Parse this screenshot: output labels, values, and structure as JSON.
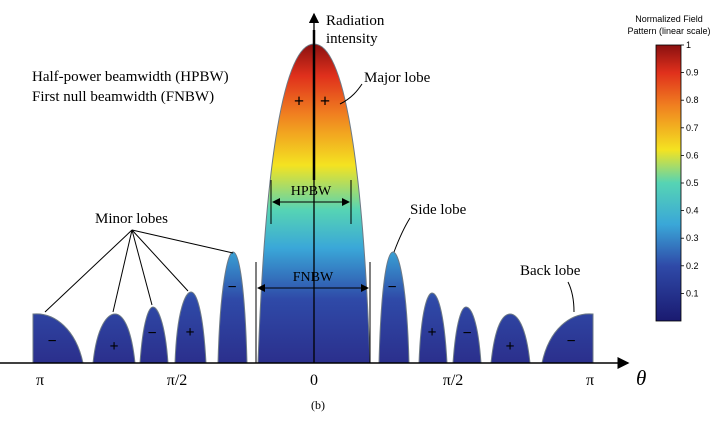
{
  "axis": {
    "y_label_line1": "Radiation",
    "y_label_line2": "intensity",
    "x_symbol": "θ",
    "tick_left": "π",
    "tick_left_half": "π/2",
    "tick_center": "0",
    "tick_right_half": "π/2",
    "tick_right": "π"
  },
  "legend_text": {
    "hpbw_full": "Half-power beamwidth (HPBW)",
    "fnbw_full": "First null beamwidth (FNBW)"
  },
  "annotations": {
    "major_lobe": "Major lobe",
    "minor_lobes": "Minor lobes",
    "side_lobe": "Side lobe",
    "back_lobe": "Back lobe",
    "hpbw": "HPBW",
    "fnbw": "FNBW",
    "caption": "(b)"
  },
  "lobe_signs": {
    "major_left": "+",
    "major_right": "+",
    "back_left": "−",
    "minor_1": "+",
    "minor_2": "−",
    "minor_3": "+",
    "side_left": "−",
    "side_right": "−",
    "minor_4": "+",
    "minor_5": "−",
    "minor_6": "+",
    "back_right": "−"
  },
  "colorbar": {
    "title_line1": "Normalized Field",
    "title_line2": "Pattern (linear scale)",
    "ticks": [
      "1",
      "0.9",
      "0.8",
      "0.7",
      "0.6",
      "0.5",
      "0.4",
      "0.3",
      "0.2",
      "0.1"
    ]
  },
  "colors": {
    "low": "#2b2f8c",
    "mid_low": "#3aa7d8",
    "mid": "#f4e321",
    "mid_high": "#f08020",
    "high": "#8a1010",
    "lobe_stroke": "#6d7a86"
  }
}
